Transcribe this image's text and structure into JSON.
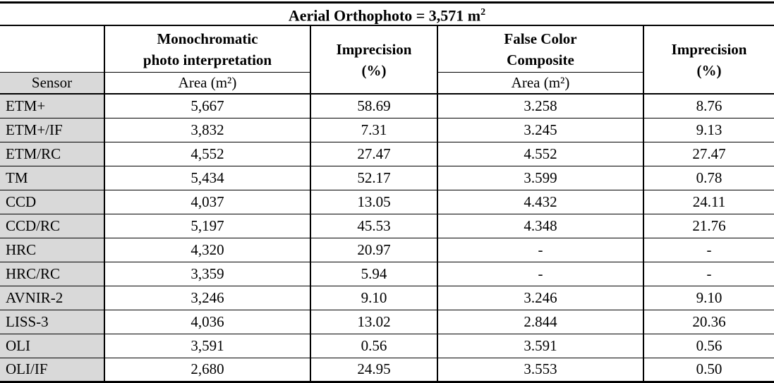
{
  "colors": {
    "sensor_column_bg": "#d9d9d9",
    "border": "#000000",
    "text": "#000000",
    "page_bg": "#ffffff"
  },
  "table": {
    "title_prefix": "Aerial Orthophoto = 3,571 m",
    "title_exponent": "2",
    "header": {
      "mono_lines": [
        "Monochromatic",
        "photo interpretation"
      ],
      "imprecision_mono_lines": [
        "Imprecision",
        "(%)"
      ],
      "fcc_lines": [
        "False Color",
        "Composite"
      ],
      "imprecision_fcc_lines": [
        "Imprecision",
        "(%)"
      ],
      "sensor_label": "Sensor",
      "mono_area_label": "Area (m²)",
      "fcc_area_label": "Area (m²)"
    },
    "rows": [
      {
        "sensor": "ETM+",
        "mono_area": "5,667",
        "mono_imprecision": "58.69",
        "fcc_area": "3.258",
        "fcc_imprecision": "8.76"
      },
      {
        "sensor": "ETM+/IF",
        "mono_area": "3,832",
        "mono_imprecision": "7.31",
        "fcc_area": "3.245",
        "fcc_imprecision": "9.13"
      },
      {
        "sensor": "ETM/RC",
        "mono_area": "4,552",
        "mono_imprecision": "27.47",
        "fcc_area": "4.552",
        "fcc_imprecision": "27.47"
      },
      {
        "sensor": "TM",
        "mono_area": "5,434",
        "mono_imprecision": "52.17",
        "fcc_area": "3.599",
        "fcc_imprecision": "0.78"
      },
      {
        "sensor": "CCD",
        "mono_area": "4,037",
        "mono_imprecision": "13.05",
        "fcc_area": "4.432",
        "fcc_imprecision": "24.11"
      },
      {
        "sensor": "CCD/RC",
        "mono_area": "5,197",
        "mono_imprecision": "45.53",
        "fcc_area": "4.348",
        "fcc_imprecision": "21.76"
      },
      {
        "sensor": "HRC",
        "mono_area": "4,320",
        "mono_imprecision": "20.97",
        "fcc_area": "-",
        "fcc_imprecision": "-"
      },
      {
        "sensor": "HRC/RC",
        "mono_area": "3,359",
        "mono_imprecision": "5.94",
        "fcc_area": "-",
        "fcc_imprecision": "-"
      },
      {
        "sensor": "AVNIR-2",
        "mono_area": "3,246",
        "mono_imprecision": "9.10",
        "fcc_area": "3.246",
        "fcc_imprecision": "9.10"
      },
      {
        "sensor": "LISS-3",
        "mono_area": "4,036",
        "mono_imprecision": "13.02",
        "fcc_area": "2.844",
        "fcc_imprecision": "20.36"
      },
      {
        "sensor": "OLI",
        "mono_area": "3,591",
        "mono_imprecision": "0.56",
        "fcc_area": "3.591",
        "fcc_imprecision": "0.56"
      },
      {
        "sensor": "OLI/IF",
        "mono_area": "2,680",
        "mono_imprecision": "24.95",
        "fcc_area": "3.553",
        "fcc_imprecision": "0.50"
      }
    ]
  }
}
